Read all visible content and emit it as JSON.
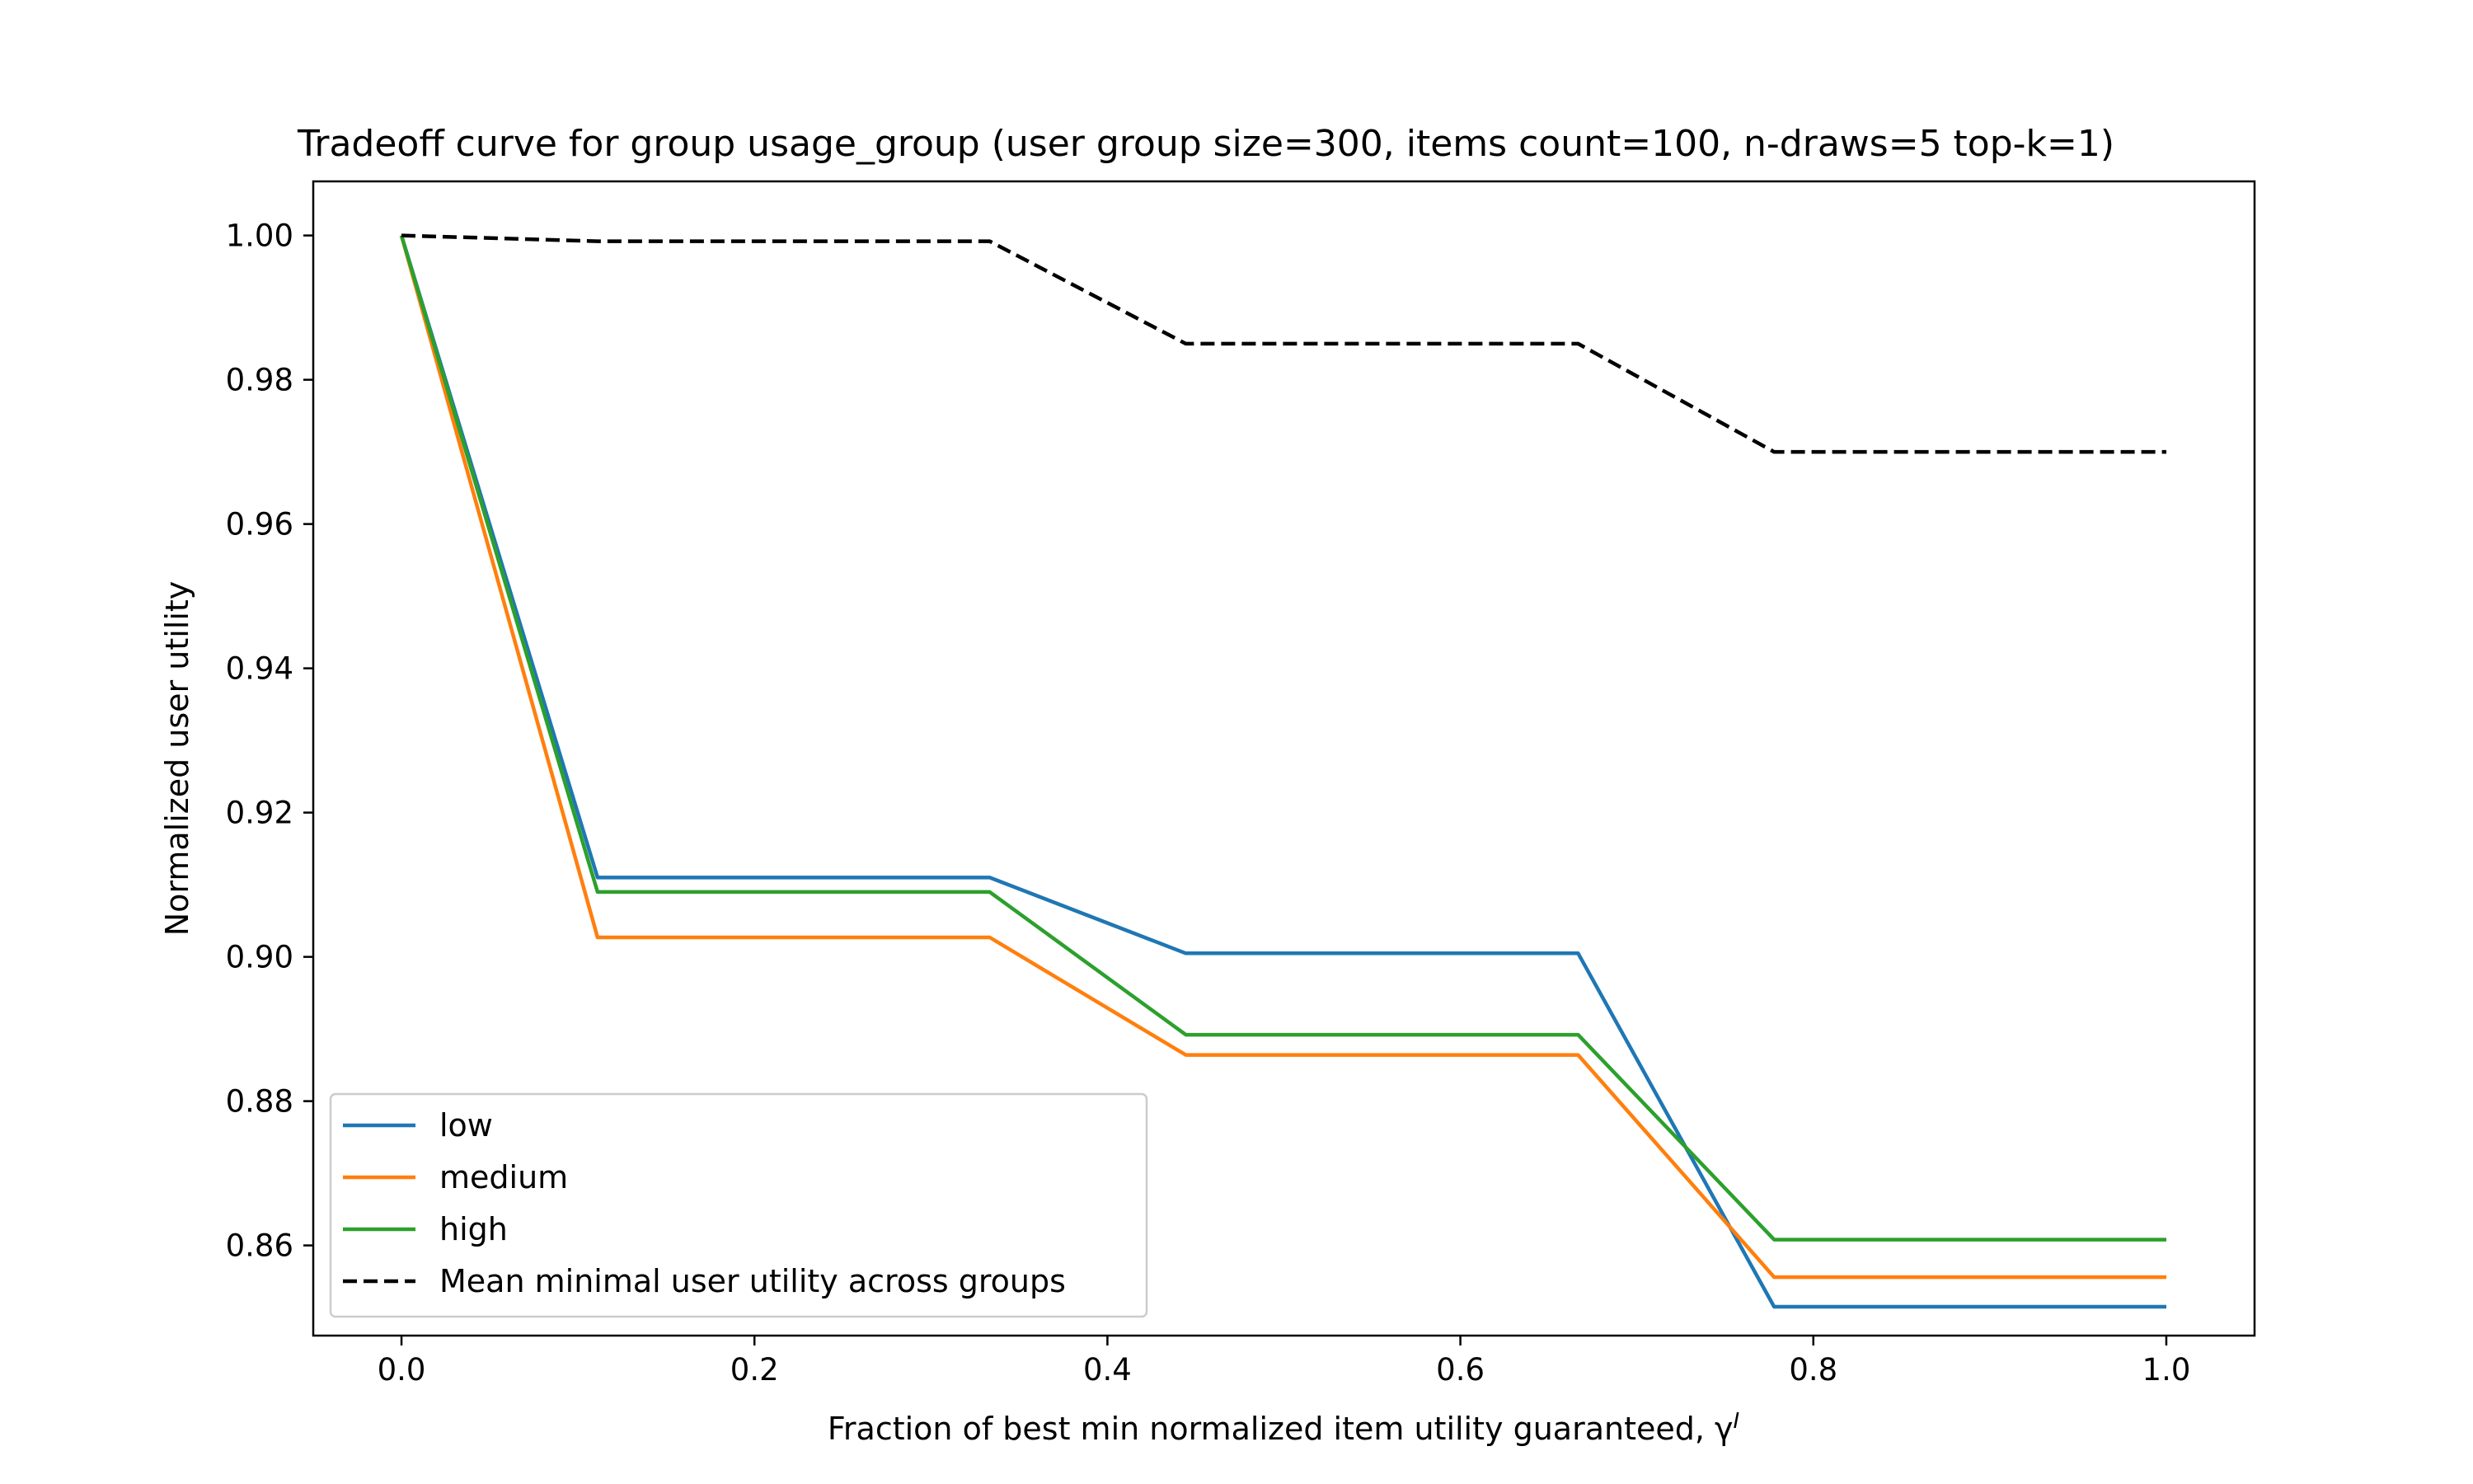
{
  "chart_data": {
    "type": "line",
    "title": "Tradeoff curve for group usage_group (user group size=300, items count=100, n-draws=5 top-k=1)",
    "xlabel": "Fraction of best min normalized item utility guaranteed, γ",
    "xlabel_superscript": "I",
    "ylabel": "Normalized user utility",
    "xlim": [
      -0.05,
      1.05
    ],
    "ylim": [
      0.8475,
      1.0075
    ],
    "x_ticks": [
      "0.0",
      "0.2",
      "0.4",
      "0.6",
      "0.8",
      "1.0"
    ],
    "y_ticks": [
      "0.86",
      "0.88",
      "0.90",
      "0.92",
      "0.94",
      "0.96",
      "0.98",
      "1.00"
    ],
    "x": [
      0.0,
      0.1111,
      0.3333,
      0.4444,
      0.6667,
      0.7778,
      1.0
    ],
    "series": [
      {
        "name": "low",
        "color": "#1f77b4",
        "dash": "solid",
        "values": [
          1.0,
          0.911,
          0.911,
          0.9005,
          0.9005,
          0.8515,
          0.8515
        ]
      },
      {
        "name": "medium",
        "color": "#ff7f0e",
        "dash": "solid",
        "values": [
          1.0,
          0.9027,
          0.9027,
          0.8864,
          0.8864,
          0.8556,
          0.8556
        ]
      },
      {
        "name": "high",
        "color": "#2ca02c",
        "dash": "solid",
        "values": [
          1.0,
          0.909,
          0.909,
          0.8892,
          0.8892,
          0.8608,
          0.8608
        ]
      },
      {
        "name": "Mean minimal user utility across groups",
        "color": "#000000",
        "dash": "dashed",
        "values": [
          1.0,
          0.9992,
          0.9992,
          0.985,
          0.985,
          0.97,
          0.97
        ]
      }
    ],
    "legend_position": "lower-left",
    "grid": false
  }
}
